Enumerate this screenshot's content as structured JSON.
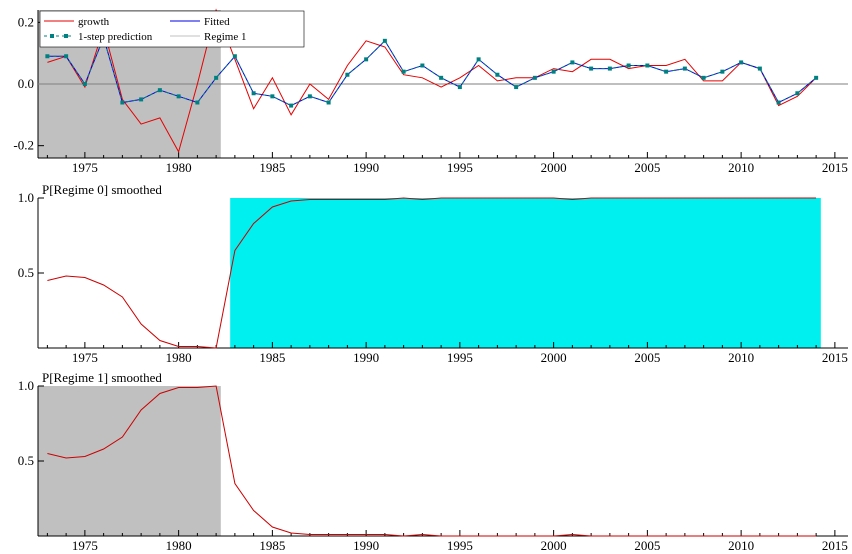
{
  "colors": {
    "growth": "#e60000",
    "fitted": "#0000e6",
    "prediction": "#008080",
    "regime1_shade": "#c0c0c0",
    "regime0_shade": "#00f0f0",
    "smoothed_line": "#cc0000",
    "axis": "#000000",
    "zero_line": "#7f7f7f"
  },
  "chart_data": [
    {
      "type": "line",
      "title": "",
      "legend": {
        "placement": "top-left",
        "entries": [
          "growth",
          "Fitted",
          "1-step prediction",
          "Regime 1"
        ]
      },
      "x": [
        1973,
        1974,
        1975,
        1976,
        1977,
        1978,
        1979,
        1980,
        1981,
        1982,
        1983,
        1984,
        1985,
        1986,
        1987,
        1988,
        1989,
        1990,
        1991,
        1992,
        1993,
        1994,
        1995,
        1996,
        1997,
        1998,
        1999,
        2000,
        2001,
        2002,
        2003,
        2004,
        2005,
        2006,
        2007,
        2008,
        2009,
        2010,
        2011,
        2012,
        2013,
        2014
      ],
      "series": [
        {
          "name": "growth",
          "values": [
            0.07,
            0.09,
            -0.01,
            0.18,
            -0.05,
            -0.13,
            -0.11,
            -0.22,
            0.0,
            0.24,
            0.08,
            -0.08,
            0.02,
            -0.1,
            0.0,
            -0.05,
            0.06,
            0.14,
            0.12,
            0.03,
            0.02,
            -0.01,
            0.02,
            0.06,
            0.01,
            0.02,
            0.02,
            0.05,
            0.04,
            0.08,
            0.08,
            0.05,
            0.06,
            0.06,
            0.08,
            0.01,
            0.01,
            0.07,
            0.05,
            -0.07,
            -0.04,
            0.02
          ]
        },
        {
          "name": "Fitted",
          "values": [
            0.09,
            0.09,
            0.0,
            0.15,
            -0.06,
            -0.05,
            -0.02,
            -0.04,
            -0.06,
            0.02,
            0.09,
            -0.03,
            -0.04,
            -0.07,
            -0.04,
            -0.06,
            0.03,
            0.08,
            0.14,
            0.04,
            0.06,
            0.02,
            -0.01,
            0.08,
            0.03,
            -0.01,
            0.02,
            0.04,
            0.07,
            0.05,
            0.05,
            0.06,
            0.06,
            0.04,
            0.05,
            0.02,
            0.04,
            0.07,
            0.05,
            -0.06,
            -0.03,
            0.02
          ]
        },
        {
          "name": "1-step prediction",
          "values": [
            0.09,
            0.09,
            0.0,
            0.15,
            -0.06,
            -0.05,
            -0.02,
            -0.04,
            -0.06,
            0.02,
            0.09,
            -0.03,
            -0.04,
            -0.07,
            -0.04,
            -0.06,
            0.03,
            0.08,
            0.14,
            0.04,
            0.06,
            0.02,
            -0.01,
            0.08,
            0.03,
            -0.01,
            0.02,
            0.04,
            0.07,
            0.05,
            0.05,
            0.06,
            0.06,
            0.04,
            0.05,
            0.02,
            0.04,
            0.07,
            0.05,
            -0.06,
            -0.03,
            0.02
          ]
        }
      ],
      "shaded_regions": [
        {
          "label": "Regime 1",
          "x_start": 1972.5,
          "x_end": 1982.25
        }
      ],
      "xlim": [
        1972.5,
        2015.7
      ],
      "ylim": [
        -0.24,
        0.24
      ],
      "xticks": [
        "1975",
        "1980",
        "1985",
        "1990",
        "1995",
        "2000",
        "2005",
        "2010",
        "2015"
      ],
      "yticks": [
        "-0.2",
        "0.0",
        "0.2"
      ],
      "reference_line_y": 0
    },
    {
      "type": "area",
      "title": "P[Regime 0] smoothed",
      "x": [
        1973,
        1974,
        1975,
        1976,
        1977,
        1978,
        1979,
        1980,
        1981,
        1982,
        1983,
        1984,
        1985,
        1986,
        1987,
        1988,
        1989,
        1990,
        1991,
        1992,
        1993,
        1994,
        1995,
        1996,
        1997,
        1998,
        1999,
        2000,
        2001,
        2002,
        2003,
        2004,
        2005,
        2006,
        2007,
        2008,
        2009,
        2010,
        2011,
        2012,
        2013,
        2014
      ],
      "series": [
        {
          "name": "",
          "values": [
            0.45,
            0.48,
            0.47,
            0.42,
            0.34,
            0.16,
            0.05,
            0.01,
            0.01,
            0.0,
            0.65,
            0.83,
            0.94,
            0.98,
            0.99,
            0.99,
            0.99,
            0.99,
            0.99,
            1.0,
            0.99,
            1.0,
            1.0,
            1.0,
            1.0,
            1.0,
            1.0,
            1.0,
            0.99,
            1.0,
            1.0,
            1.0,
            1.0,
            1.0,
            1.0,
            1.0,
            1.0,
            1.0,
            1.0,
            1.0,
            1.0,
            1.0
          ]
        }
      ],
      "shaded_regions": [
        {
          "x_start": 1982.75,
          "x_end": 2014.25
        }
      ],
      "xlim": [
        1972.5,
        2015.7
      ],
      "ylim": [
        0,
        1.0
      ],
      "xticks": [
        "1975",
        "1980",
        "1985",
        "1990",
        "1995",
        "2000",
        "2005",
        "2010",
        "2015"
      ],
      "yticks": [
        "0.5",
        "1.0"
      ]
    },
    {
      "type": "area",
      "title": "P[Regime 1] smoothed",
      "x": [
        1973,
        1974,
        1975,
        1976,
        1977,
        1978,
        1979,
        1980,
        1981,
        1982,
        1983,
        1984,
        1985,
        1986,
        1987,
        1988,
        1989,
        1990,
        1991,
        1992,
        1993,
        1994,
        1995,
        1996,
        1997,
        1998,
        1999,
        2000,
        2001,
        2002,
        2003,
        2004,
        2005,
        2006,
        2007,
        2008,
        2009,
        2010,
        2011,
        2012,
        2013,
        2014
      ],
      "series": [
        {
          "name": "",
          "values": [
            0.55,
            0.52,
            0.53,
            0.58,
            0.66,
            0.84,
            0.95,
            0.99,
            0.99,
            1.0,
            0.35,
            0.17,
            0.06,
            0.02,
            0.01,
            0.01,
            0.01,
            0.01,
            0.01,
            0.0,
            0.01,
            0.0,
            0.0,
            0.0,
            0.0,
            0.0,
            0.0,
            0.0,
            0.01,
            0.0,
            0.0,
            0.0,
            0.0,
            0.0,
            0.0,
            0.0,
            0.0,
            0.0,
            0.0,
            0.0,
            0.0,
            0.0
          ]
        }
      ],
      "shaded_regions": [
        {
          "x_start": 1972.5,
          "x_end": 1982.25
        }
      ],
      "xlim": [
        1972.5,
        2015.7
      ],
      "ylim": [
        0,
        1.0
      ],
      "xticks": [
        "1975",
        "1980",
        "1985",
        "1990",
        "1995",
        "2000",
        "2005",
        "2010",
        "2015"
      ],
      "yticks": [
        "0.5",
        "1.0"
      ]
    }
  ]
}
